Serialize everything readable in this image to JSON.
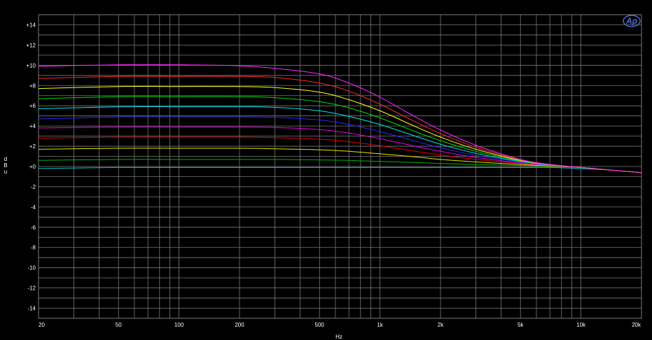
{
  "chart_data": {
    "type": "line",
    "xlabel": "Hz",
    "ylabel_letters": [
      "d",
      "B",
      "u"
    ],
    "xscale": "log",
    "xlim": [
      20,
      20000
    ],
    "ylim": [
      -15,
      15
    ],
    "grid": true,
    "background": "#000000",
    "grid_color": "#7a7a7a",
    "logo_text": "Ap",
    "x_ticks": [
      {
        "value": 20,
        "label": "20"
      },
      {
        "value": 50,
        "label": "50"
      },
      {
        "value": 100,
        "label": "100"
      },
      {
        "value": 200,
        "label": "200"
      },
      {
        "value": 500,
        "label": "500"
      },
      {
        "value": 1000,
        "label": "1k"
      },
      {
        "value": 2000,
        "label": "2k"
      },
      {
        "value": 5000,
        "label": "5k"
      },
      {
        "value": 10000,
        "label": "10k"
      },
      {
        "value": 20000,
        "label": "20k"
      }
    ],
    "y_ticks": [
      {
        "value": 14,
        "label": "+14"
      },
      {
        "value": 12,
        "label": "+12"
      },
      {
        "value": 10,
        "label": "+10"
      },
      {
        "value": 8,
        "label": "+8"
      },
      {
        "value": 6,
        "label": "+6"
      },
      {
        "value": 4,
        "label": "+4"
      },
      {
        "value": 2,
        "label": "+2"
      },
      {
        "value": 0,
        "label": "+0"
      },
      {
        "value": -2,
        "label": "-2"
      },
      {
        "value": -4,
        "label": "-4"
      },
      {
        "value": -6,
        "label": "-6"
      },
      {
        "value": -8,
        "label": "-8"
      },
      {
        "value": -10,
        "label": "-10"
      },
      {
        "value": -12,
        "label": "-12"
      },
      {
        "value": -14,
        "label": "-14"
      }
    ],
    "x": [
      20,
      50,
      100,
      200,
      300,
      500,
      700,
      1000,
      1500,
      2000,
      3000,
      5000,
      7000,
      10000,
      15000,
      20000
    ],
    "series": [
      {
        "color": "#00c8c8",
        "values": [
          -0.2,
          -0.1,
          -0.1,
          -0.1,
          -0.1,
          -0.1,
          -0.1,
          -0.1,
          -0.1,
          -0.1,
          -0.1,
          -0.1,
          -0.1,
          -0.2,
          -0.4,
          -0.6
        ]
      },
      {
        "color": "#00b400",
        "values": [
          0.6,
          0.7,
          0.7,
          0.7,
          0.7,
          0.65,
          0.6,
          0.5,
          0.4,
          0.3,
          0.2,
          0.1,
          0.0,
          -0.1,
          -0.4,
          -0.6
        ]
      },
      {
        "color": "#e6e600",
        "values": [
          1.7,
          1.8,
          1.8,
          1.8,
          1.75,
          1.65,
          1.5,
          1.25,
          0.95,
          0.7,
          0.45,
          0.2,
          0.05,
          -0.1,
          -0.4,
          -0.6
        ]
      },
      {
        "color": "#e60000",
        "values": [
          2.8,
          2.9,
          2.9,
          2.9,
          2.85,
          2.7,
          2.45,
          2.05,
          1.5,
          1.15,
          0.7,
          0.3,
          0.1,
          -0.1,
          -0.4,
          -0.6
        ]
      },
      {
        "color": "#e600e6",
        "values": [
          3.8,
          3.9,
          3.9,
          3.9,
          3.85,
          3.65,
          3.3,
          2.75,
          2.0,
          1.5,
          0.9,
          0.35,
          0.1,
          -0.1,
          -0.4,
          -0.6
        ]
      },
      {
        "color": "#2828ff",
        "values": [
          4.7,
          4.9,
          4.9,
          4.9,
          4.85,
          4.6,
          4.15,
          3.45,
          2.5,
          1.85,
          1.1,
          0.45,
          0.15,
          -0.1,
          -0.4,
          -0.6
        ]
      },
      {
        "color": "#00e6e6",
        "values": [
          5.7,
          5.9,
          5.9,
          5.9,
          5.85,
          5.5,
          4.95,
          4.15,
          3.0,
          2.2,
          1.3,
          0.5,
          0.15,
          -0.1,
          -0.4,
          -0.6
        ]
      },
      {
        "color": "#00dc00",
        "values": [
          6.7,
          6.9,
          6.9,
          6.9,
          6.8,
          6.4,
          5.8,
          4.8,
          3.45,
          2.55,
          1.5,
          0.55,
          0.2,
          -0.1,
          -0.4,
          -0.6
        ]
      },
      {
        "color": "#ffff28",
        "values": [
          7.7,
          7.9,
          7.9,
          7.9,
          7.8,
          7.35,
          6.6,
          5.5,
          3.95,
          2.9,
          1.7,
          0.6,
          0.2,
          -0.1,
          -0.4,
          -0.6
        ]
      },
      {
        "color": "#ff2828",
        "values": [
          8.7,
          8.9,
          8.9,
          8.9,
          8.8,
          8.25,
          7.45,
          6.15,
          4.4,
          3.25,
          1.9,
          0.65,
          0.2,
          -0.1,
          -0.4,
          -0.6
        ]
      },
      {
        "color": "#ff28ff",
        "values": [
          9.9,
          10.05,
          10.05,
          9.95,
          9.7,
          9.15,
          8.25,
          6.85,
          4.9,
          3.6,
          2.1,
          0.7,
          0.2,
          -0.1,
          -0.4,
          -0.6
        ]
      }
    ]
  }
}
